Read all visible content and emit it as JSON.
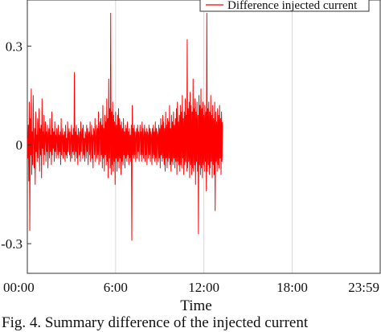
{
  "chart_data": {
    "type": "line",
    "title": "",
    "xlabel": "Time",
    "ylabel": "",
    "x_tick_labels": [
      "00:00",
      "6:00",
      "12:00",
      "18:00",
      "23:59"
    ],
    "x_ticks_minutes": [
      0,
      360,
      720,
      1080,
      1439
    ],
    "xlim_minutes": [
      0,
      1439
    ],
    "y_tick_labels": [
      "-0.3",
      "0",
      "0.3"
    ],
    "y_ticks": [
      -0.3,
      0,
      0.3
    ],
    "ylim": [
      -0.39,
      0.44
    ],
    "grid": "vertical",
    "legend_position": "top-right",
    "series": [
      {
        "name": "Difference injected current",
        "color": "#ff0000",
        "sampling_interval_minutes": 2,
        "values": [
          0.02,
          -0.04,
          0.06,
          -0.11,
          0.13,
          -0.26,
          0.08,
          -0.03,
          0.17,
          -0.09,
          0.04,
          -0.06,
          0.15,
          0.01,
          -0.07,
          0.05,
          -0.12,
          0.1,
          -0.02,
          0.03,
          -0.05,
          0.08,
          -0.04,
          0.02,
          0.11,
          -0.08,
          0.05,
          -0.03,
          0.06,
          -0.1,
          0.14,
          -0.01,
          0.04,
          -0.06,
          0.09,
          -0.03,
          0.02,
          0.07,
          -0.05,
          0.04,
          -0.02,
          0.06,
          -0.07,
          0.03,
          0.05,
          -0.04,
          0.08,
          -0.02,
          0.03,
          -0.06,
          0.1,
          -0.03,
          0.05,
          -0.01,
          0.04,
          -0.05,
          0.07,
          -0.02,
          0.03,
          -0.04,
          0.05,
          0.02,
          -0.03,
          0.06,
          -0.04,
          0.03,
          -0.02,
          0.04,
          -0.06,
          0.08,
          -0.03,
          0.02,
          0.05,
          -0.04,
          0.03,
          -0.02,
          0.04,
          -0.05,
          0.06,
          -0.03,
          0.02,
          -0.04,
          0.07,
          -0.02,
          0.03,
          0.05,
          -0.03,
          0.04,
          -0.05,
          0.02,
          0.06,
          -0.04,
          0.03,
          -0.02,
          0.05,
          -0.03,
          0.22,
          -0.05,
          0.04,
          -0.02,
          0.06,
          -0.04,
          0.03,
          -0.06,
          0.05,
          0.02,
          -0.03,
          0.04,
          -0.05,
          0.07,
          -0.02,
          0.03,
          0.05,
          -0.04,
          0.06,
          -0.03,
          0.02,
          -0.05,
          0.04,
          0.03,
          -0.04,
          0.06,
          -0.02,
          0.05,
          -0.06,
          0.03,
          0.04,
          -0.03,
          0.07,
          -0.05,
          0.02,
          0.06,
          -0.04,
          0.03,
          -0.07,
          0.05,
          0.04,
          -0.03,
          0.08,
          -0.05,
          0.02,
          0.06,
          -0.04,
          0.05,
          -0.03,
          0.1,
          -0.06,
          0.04,
          0.07,
          -0.05,
          0.08,
          -0.03,
          0.06,
          -0.07,
          0.12,
          -0.04,
          0.05,
          -0.08,
          0.09,
          -0.03,
          0.07,
          -0.06,
          0.14,
          -0.05,
          0.08,
          -0.1,
          0.2,
          -0.04,
          0.11,
          -0.07,
          0.4,
          -0.09,
          0.1,
          -0.06,
          0.13,
          -0.08,
          0.09,
          -0.05,
          0.07,
          -0.12,
          0.1,
          -0.04,
          0.06,
          -0.08,
          0.09,
          -0.05,
          0.11,
          -0.07,
          0.08,
          -0.04,
          0.06,
          -0.09,
          0.07,
          -0.05,
          0.05,
          -0.06,
          0.08,
          -0.03,
          0.04,
          -0.07,
          0.06,
          -0.04,
          0.05,
          -0.05,
          0.07,
          -0.03,
          0.04,
          -0.06,
          0.05,
          -0.04,
          0.03,
          -0.05,
          0.06,
          -0.29,
          0.12,
          -0.03,
          0.05,
          -0.04,
          0.06,
          -0.03,
          0.04,
          -0.05,
          0.03,
          0.05,
          -0.04,
          0.06,
          -0.02,
          0.04,
          -0.05,
          0.03,
          0.06,
          -0.03,
          0.04,
          -0.05,
          0.07,
          -0.03,
          0.05,
          -0.04,
          0.03,
          0.06,
          -0.05,
          0.04,
          -0.03,
          0.05,
          -0.06,
          0.04,
          0.03,
          -0.04,
          0.06,
          -0.03,
          0.05,
          -0.05,
          0.04,
          0.03,
          -0.06,
          0.05,
          -0.04,
          0.06,
          -0.03,
          0.04,
          -0.05,
          0.07,
          -0.04,
          0.05,
          -0.06,
          0.04,
          0.03,
          -0.05,
          0.06,
          -0.04,
          0.05,
          -0.07,
          0.08,
          -0.03,
          0.06,
          -0.05,
          0.09,
          -0.04,
          0.07,
          -0.06,
          0.05,
          -0.08,
          0.1,
          -0.04,
          0.06,
          -0.07,
          0.08,
          -0.05,
          0.07,
          -0.04,
          0.12,
          -0.06,
          0.05,
          -0.08,
          0.09,
          -0.05,
          0.07,
          -0.06,
          0.1,
          -0.04,
          0.06,
          -0.07,
          0.08,
          -0.05,
          0.11,
          -0.09,
          0.13,
          -0.05,
          0.07,
          -0.06,
          0.09,
          -0.08,
          0.12,
          -0.06,
          0.1,
          -0.07,
          0.15,
          -0.04,
          0.08,
          -0.09,
          0.1,
          -0.06,
          0.14,
          -0.05,
          0.09,
          -0.08,
          0.32,
          -0.07,
          0.11,
          -0.05,
          0.13,
          -0.1,
          0.16,
          -0.06,
          0.12,
          -0.09,
          0.1,
          -0.07,
          0.2,
          -0.08,
          0.11,
          -0.06,
          0.14,
          -0.12,
          0.1,
          -0.05,
          0.13,
          -0.08,
          0.09,
          -0.27,
          0.15,
          -0.06,
          0.12,
          -0.09,
          0.17,
          -0.07,
          0.11,
          -0.1,
          0.13,
          -0.06,
          0.09,
          -0.08,
          0.12,
          -0.05,
          0.1,
          -0.14,
          0.4,
          -0.08,
          0.11,
          -0.06,
          0.13,
          -0.09,
          0.1,
          -0.07,
          0.15,
          -0.05,
          0.09,
          -0.1,
          0.12,
          -0.06,
          0.08,
          -0.09,
          0.13,
          -0.2,
          0.1,
          -0.05,
          0.07,
          -0.08,
          0.11,
          -0.06,
          0.09,
          -0.07,
          0.12,
          -0.04,
          0.08,
          -0.09,
          0.1,
          -0.05,
          0.07
        ]
      }
    ]
  },
  "caption_text": "Fig. 4.  Summary difference of the injected current"
}
